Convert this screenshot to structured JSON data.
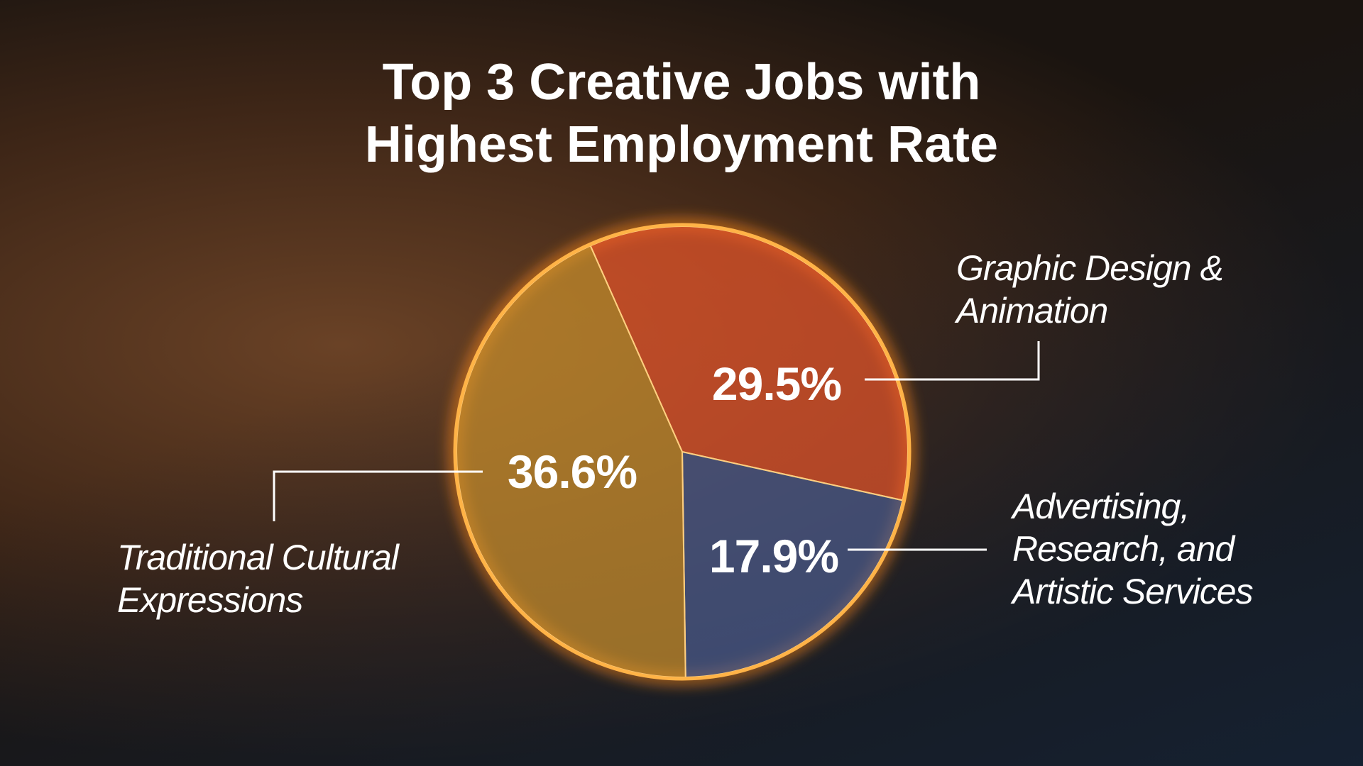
{
  "chart_data": {
    "type": "pie",
    "title": "Top 3 Creative Jobs with Highest Employment Rate",
    "categories": [
      "Graphic Design & Animation",
      "Advertising, Research, and Artistic Services",
      "Traditional Cultural Expressions"
    ],
    "values": [
      29.5,
      17.9,
      36.6
    ],
    "value_labels": [
      "29.5%",
      "17.9%",
      "36.6%"
    ],
    "colors": [
      "#e4542a",
      "#4b5b8e",
      "#c98f2c"
    ]
  }
}
